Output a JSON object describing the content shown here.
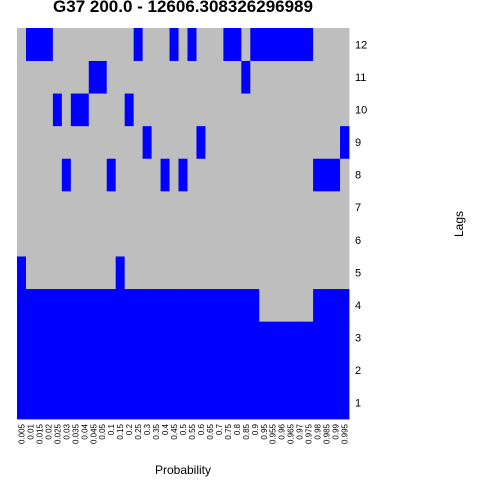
{
  "chart_data": {
    "type": "heatmap",
    "title": "G37 200.0 - 12606.308326296989",
    "xlabel": "Probability",
    "ylabel": "Lags",
    "x_categories": [
      "0.005",
      "0.01",
      "0.015",
      "0.02",
      "0.025",
      "0.03",
      "0.035",
      "0.04",
      "0.045",
      "0.05",
      "0.1",
      "0.15",
      "0.2",
      "0.25",
      "0.3",
      "0.35",
      "0.4",
      "0.45",
      "0.5",
      "0.55",
      "0.6",
      "0.65",
      "0.7",
      "0.75",
      "0.8",
      "0.85",
      "0.9",
      "0.95",
      "0.955",
      "0.96",
      "0.965",
      "0.97",
      "0.975",
      "0.98",
      "0.985",
      "0.99",
      "0.995"
    ],
    "y_categories": [
      "1",
      "2",
      "3",
      "4",
      "5",
      "6",
      "7",
      "8",
      "9",
      "10",
      "11",
      "12"
    ],
    "colors": {
      "selected": "#0000ff",
      "not_selected": "#bebebe"
    },
    "legend": "none",
    "rows": [
      {
        "lag": "1",
        "values": [
          1,
          1,
          1,
          1,
          1,
          1,
          1,
          1,
          1,
          1,
          1,
          1,
          1,
          1,
          1,
          1,
          1,
          1,
          1,
          1,
          1,
          1,
          1,
          1,
          1,
          1,
          1,
          1,
          1,
          1,
          1,
          1,
          1,
          1,
          1,
          1,
          1
        ]
      },
      {
        "lag": "2",
        "values": [
          1,
          1,
          1,
          1,
          1,
          1,
          1,
          1,
          1,
          1,
          1,
          1,
          1,
          1,
          1,
          1,
          1,
          1,
          1,
          1,
          1,
          1,
          1,
          1,
          1,
          1,
          1,
          1,
          1,
          1,
          1,
          1,
          1,
          1,
          1,
          1,
          1
        ]
      },
      {
        "lag": "3",
        "values": [
          1,
          1,
          1,
          1,
          1,
          1,
          1,
          1,
          1,
          1,
          1,
          1,
          1,
          1,
          1,
          1,
          1,
          1,
          1,
          1,
          1,
          1,
          1,
          1,
          1,
          1,
          1,
          1,
          1,
          1,
          1,
          1,
          1,
          1,
          1,
          1,
          1
        ]
      },
      {
        "lag": "4",
        "values": [
          1,
          1,
          1,
          1,
          1,
          1,
          1,
          1,
          1,
          1,
          1,
          1,
          1,
          1,
          1,
          1,
          1,
          1,
          1,
          1,
          1,
          1,
          1,
          1,
          1,
          1,
          1,
          0,
          0,
          0,
          0,
          0,
          0,
          1,
          1,
          1,
          1
        ]
      },
      {
        "lag": "5",
        "values": [
          1,
          0,
          0,
          0,
          0,
          0,
          0,
          0,
          0,
          0,
          0,
          1,
          0,
          0,
          0,
          0,
          0,
          0,
          0,
          0,
          0,
          0,
          0,
          0,
          0,
          0,
          0,
          0,
          0,
          0,
          0,
          0,
          0,
          0,
          0,
          0,
          0
        ]
      },
      {
        "lag": "6",
        "values": [
          0,
          0,
          0,
          0,
          0,
          0,
          0,
          0,
          0,
          0,
          0,
          0,
          0,
          0,
          0,
          0,
          0,
          0,
          0,
          0,
          0,
          0,
          0,
          0,
          0,
          0,
          0,
          0,
          0,
          0,
          0,
          0,
          0,
          0,
          0,
          0,
          0
        ]
      },
      {
        "lag": "7",
        "values": [
          0,
          0,
          0,
          0,
          0,
          0,
          0,
          0,
          0,
          0,
          0,
          0,
          0,
          0,
          0,
          0,
          0,
          0,
          0,
          0,
          0,
          0,
          0,
          0,
          0,
          0,
          0,
          0,
          0,
          0,
          0,
          0,
          0,
          0,
          0,
          0,
          0
        ]
      },
      {
        "lag": "8",
        "values": [
          0,
          0,
          0,
          0,
          0,
          1,
          0,
          0,
          0,
          0,
          1,
          0,
          0,
          0,
          0,
          0,
          1,
          0,
          1,
          0,
          0,
          0,
          0,
          0,
          0,
          0,
          0,
          0,
          0,
          0,
          0,
          0,
          0,
          1,
          1,
          1,
          0
        ]
      },
      {
        "lag": "9",
        "values": [
          0,
          0,
          0,
          0,
          0,
          0,
          0,
          0,
          0,
          0,
          0,
          0,
          0,
          0,
          1,
          0,
          0,
          0,
          0,
          0,
          1,
          0,
          0,
          0,
          0,
          0,
          0,
          0,
          0,
          0,
          0,
          0,
          0,
          0,
          0,
          0,
          1
        ]
      },
      {
        "lag": "10",
        "values": [
          0,
          0,
          0,
          0,
          1,
          0,
          1,
          1,
          0,
          0,
          0,
          0,
          1,
          0,
          0,
          0,
          0,
          0,
          0,
          0,
          0,
          0,
          0,
          0,
          0,
          0,
          0,
          0,
          0,
          0,
          0,
          0,
          0,
          0,
          0,
          0,
          0
        ]
      },
      {
        "lag": "11",
        "values": [
          0,
          0,
          0,
          0,
          0,
          0,
          0,
          0,
          1,
          1,
          0,
          0,
          0,
          0,
          0,
          0,
          0,
          0,
          0,
          0,
          0,
          0,
          0,
          0,
          0,
          1,
          0,
          0,
          0,
          0,
          0,
          0,
          0,
          0,
          0,
          0,
          0
        ]
      },
      {
        "lag": "12",
        "values": [
          0,
          1,
          1,
          1,
          0,
          0,
          0,
          0,
          0,
          0,
          0,
          0,
          0,
          1,
          0,
          0,
          0,
          1,
          0,
          1,
          0,
          0,
          0,
          1,
          1,
          0,
          1,
          1,
          1,
          1,
          1,
          1,
          1,
          0,
          0,
          0,
          0
        ]
      }
    ]
  }
}
